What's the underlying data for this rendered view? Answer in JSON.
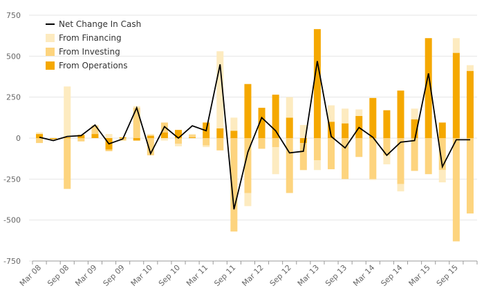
{
  "chart_data": {
    "type": "bar",
    "stacked": true,
    "combo": "bar-and-line",
    "title": "",
    "xlabel": "",
    "ylabel": "",
    "ylim": [
      -750,
      750
    ],
    "yticks": [
      750,
      500,
      250,
      0,
      -250,
      -500,
      -750
    ],
    "grid": true,
    "legend_position": "top-left",
    "categories": [
      "Mar 08",
      "Jun 08",
      "Sep 08",
      "Dec 08",
      "Mar 09",
      "Jun 09",
      "Sep 09",
      "Dec 09",
      "Mar 10",
      "Jun 10",
      "Sep 10",
      "Dec 10",
      "Mar 11",
      "Jun 11",
      "Sep 11",
      "Dec 11",
      "Mar 12",
      "Jun 12",
      "Sep 12",
      "Dec 12",
      "Mar 13",
      "Jun 13",
      "Sep 13",
      "Dec 13",
      "Mar 14",
      "Jun 14",
      "Sep 14",
      "Dec 14",
      "Mar 15",
      "Jun 15",
      "Sep 15",
      "Dec 15"
    ],
    "x_tick_labels": [
      "Mar 08",
      "Sep 08",
      "Mar 09",
      "Sep 09",
      "Mar 10",
      "Sep 10",
      "Mar 11",
      "Sep 11",
      "Mar 12",
      "Sep 12",
      "Mar 13",
      "Sep 13",
      "Mar 14",
      "Sep 14",
      "Mar 15",
      "Sep 15"
    ],
    "series": [
      {
        "name": "From Operations",
        "chart_type": "bar",
        "color": "#f5a800",
        "values": [
          25,
          -5,
          5,
          20,
          25,
          -70,
          5,
          -15,
          15,
          35,
          50,
          5,
          95,
          60,
          45,
          330,
          185,
          265,
          125,
          -30,
          665,
          100,
          90,
          135,
          245,
          170,
          290,
          115,
          610,
          95,
          520,
          410
        ]
      },
      {
        "name": "From Investing",
        "chart_type": "bar",
        "color": "#fdd47e",
        "values": [
          -30,
          -5,
          -310,
          -20,
          50,
          -10,
          -15,
          185,
          -105,
          60,
          -35,
          15,
          -45,
          -75,
          -570,
          -335,
          -65,
          -55,
          -335,
          -165,
          -135,
          -190,
          -250,
          -115,
          -250,
          -105,
          -280,
          -200,
          -220,
          -195,
          -630,
          -460
        ]
      },
      {
        "name": "From Financing",
        "chart_type": "bar",
        "color": "#fdebc0",
        "values": [
          10,
          0,
          310,
          0,
          5,
          25,
          0,
          10,
          10,
          -15,
          -15,
          5,
          -10,
          470,
          80,
          -80,
          0,
          -165,
          125,
          80,
          -60,
          100,
          90,
          40,
          -5,
          -55,
          -45,
          65,
          0,
          -75,
          90,
          35
        ]
      },
      {
        "name": "Net Change In Cash",
        "chart_type": "line",
        "color": "#000000",
        "values": [
          5,
          -15,
          10,
          15,
          80,
          -35,
          -5,
          185,
          -95,
          70,
          0,
          75,
          45,
          450,
          -435,
          -85,
          125,
          45,
          -90,
          -80,
          470,
          10,
          -60,
          65,
          5,
          -105,
          -25,
          -15,
          395,
          -175,
          -10,
          -10
        ]
      }
    ]
  }
}
